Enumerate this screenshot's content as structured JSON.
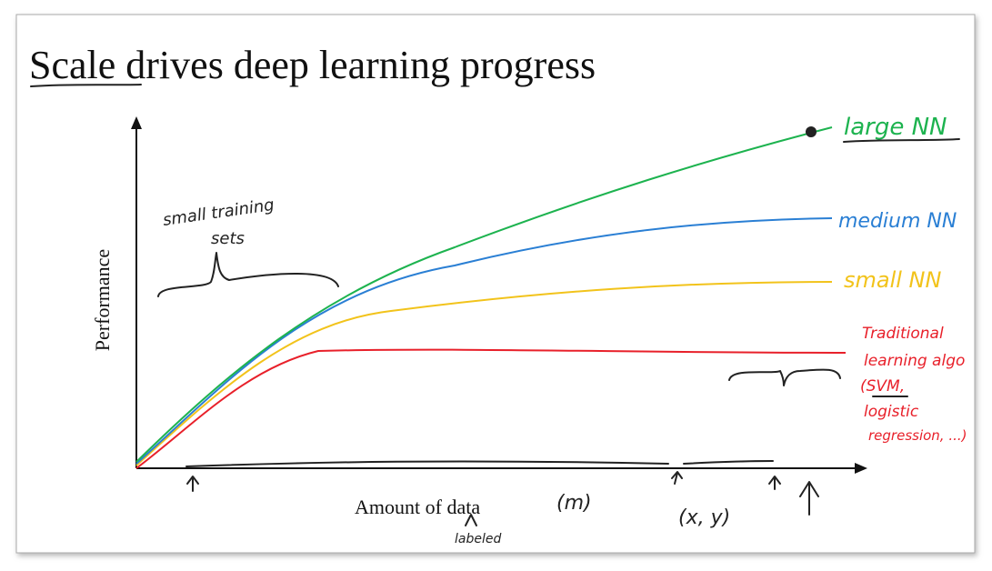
{
  "slide": {
    "title": "Scale drives deep learning progress",
    "y_axis_label": "Performance",
    "x_axis_label": "Amount of data",
    "curve_labels": {
      "large": "large NN",
      "medium": "medium NN",
      "small": "small NN",
      "traditional": [
        "Traditional",
        "learning algo",
        "(SVM,",
        "logistic",
        "regression, ...)"
      ]
    },
    "annotations": {
      "small_training_sets": [
        "small training",
        "sets"
      ],
      "m": "(m)",
      "labeled": "labeled",
      "xy": "(x, y)"
    }
  }
}
